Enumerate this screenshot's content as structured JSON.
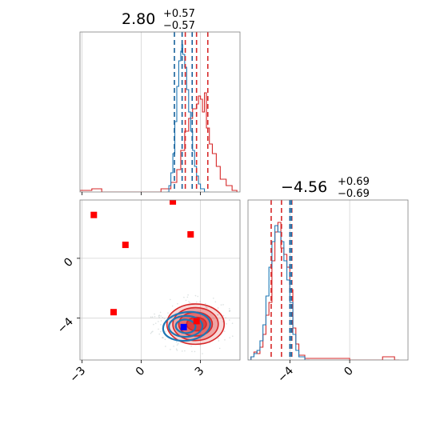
{
  "chart_data": {
    "type": "corner",
    "colors": {
      "red": "#d62728",
      "blue": "#1f77b4",
      "grid": "#d3d3d3",
      "axis": "#808080"
    },
    "titles": [
      {
        "main": "2.80",
        "upper": "+0.57",
        "lower": "−0.57"
      },
      {
        "main": "−4.56",
        "upper": "+0.69",
        "lower": "−0.69"
      }
    ],
    "param1_axis": {
      "range": [
        -3.1,
        5.0
      ],
      "ticks": [
        -3,
        0,
        3
      ],
      "tick_labels": [
        "−3",
        "0",
        "3"
      ]
    },
    "param2_axis": {
      "range": [
        -6.8,
        3.9
      ],
      "ticks": [
        -4,
        0
      ],
      "tick_labels": [
        "−4",
        "0"
      ]
    },
    "hist1": {
      "red_quantiles": [
        2.23,
        2.8,
        3.37
      ],
      "blue_quantiles": [
        1.68,
        2.07,
        2.58
      ],
      "red_bins": [
        [
          -3.1,
          0.01
        ],
        [
          -2.5,
          0.02
        ],
        [
          -2.0,
          0.0
        ],
        [
          0.5,
          0.0
        ],
        [
          1.0,
          0.02
        ],
        [
          1.5,
          0.06
        ],
        [
          1.8,
          0.14
        ],
        [
          2.0,
          0.26
        ],
        [
          2.2,
          0.38
        ],
        [
          2.4,
          0.46
        ],
        [
          2.6,
          0.52
        ],
        [
          2.8,
          0.55
        ],
        [
          2.9,
          0.6
        ],
        [
          3.0,
          0.58
        ],
        [
          3.1,
          0.5
        ],
        [
          3.2,
          0.62
        ],
        [
          3.3,
          0.4
        ],
        [
          3.45,
          0.3
        ],
        [
          3.6,
          0.24
        ],
        [
          3.8,
          0.16
        ],
        [
          4.0,
          0.08
        ],
        [
          4.3,
          0.04
        ],
        [
          4.6,
          0.01
        ]
      ],
      "blue_bins": [
        [
          1.3,
          0.0
        ],
        [
          1.4,
          0.04
        ],
        [
          1.5,
          0.12
        ],
        [
          1.6,
          0.24
        ],
        [
          1.7,
          0.44
        ],
        [
          1.8,
          0.66
        ],
        [
          1.9,
          0.82
        ],
        [
          2.0,
          0.88
        ],
        [
          2.05,
          0.92
        ],
        [
          2.1,
          0.86
        ],
        [
          2.2,
          0.78
        ],
        [
          2.3,
          0.64
        ],
        [
          2.4,
          0.5
        ],
        [
          2.5,
          0.38
        ],
        [
          2.6,
          0.26
        ],
        [
          2.7,
          0.16
        ],
        [
          2.8,
          0.1
        ],
        [
          2.9,
          0.05
        ],
        [
          3.0,
          0.02
        ],
        [
          3.2,
          0.0
        ]
      ]
    },
    "hist2": {
      "red_quantiles": [
        -5.25,
        -4.56,
        -3.87
      ],
      "blue_quantiles": [
        -4.0,
        -3.9
      ],
      "red_bins": [
        [
          -6.8,
          0.0
        ],
        [
          -6.6,
          0.02
        ],
        [
          -6.4,
          0.05
        ],
        [
          -6.2,
          0.04
        ],
        [
          -6.0,
          0.08
        ],
        [
          -5.8,
          0.16
        ],
        [
          -5.6,
          0.28
        ],
        [
          -5.4,
          0.36
        ],
        [
          -5.2,
          0.62
        ],
        [
          -5.0,
          0.8
        ],
        [
          -4.8,
          0.86
        ],
        [
          -4.6,
          0.7
        ],
        [
          -4.4,
          0.66
        ],
        [
          -4.2,
          0.58
        ],
        [
          -4.0,
          0.44
        ],
        [
          -3.8,
          0.2
        ],
        [
          -3.6,
          0.1
        ],
        [
          -3.4,
          0.03
        ],
        [
          -3.0,
          0.01
        ],
        [
          0.0,
          0.0
        ],
        [
          2.2,
          0.02
        ],
        [
          3.0,
          0.0
        ]
      ],
      "blue_bins": [
        [
          -6.8,
          0.0
        ],
        [
          -6.6,
          0.02
        ],
        [
          -6.4,
          0.04
        ],
        [
          -6.2,
          0.06
        ],
        [
          -6.0,
          0.12
        ],
        [
          -5.8,
          0.22
        ],
        [
          -5.6,
          0.4
        ],
        [
          -5.4,
          0.58
        ],
        [
          -5.2,
          0.74
        ],
        [
          -5.0,
          0.84
        ],
        [
          -4.8,
          0.8
        ],
        [
          -4.6,
          0.74
        ],
        [
          -4.4,
          0.62
        ],
        [
          -4.2,
          0.5
        ],
        [
          -4.0,
          0.36
        ],
        [
          -3.8,
          0.16
        ],
        [
          -3.6,
          0.06
        ],
        [
          -3.4,
          0.02
        ],
        [
          -3.0,
          0.0
        ]
      ]
    },
    "scatter_red_squares": [
      [
        -2.4,
        2.9
      ],
      [
        1.6,
        3.8
      ],
      [
        -0.8,
        0.9
      ],
      [
        2.5,
        1.6
      ],
      [
        -1.4,
        -3.6
      ],
      [
        2.8,
        -4.2
      ]
    ],
    "scatter_blue_squares": [
      [
        2.15,
        -4.6
      ]
    ],
    "contours_red": [
      {
        "cx": 2.75,
        "cy": -4.4,
        "rx": 1.45,
        "ry": 1.35,
        "fill_opacity": 0.18
      },
      {
        "cx": 2.75,
        "cy": -4.4,
        "rx": 1.15,
        "ry": 1.1,
        "fill_opacity": 0.3
      },
      {
        "cx": 2.75,
        "cy": -4.4,
        "rx": 0.85,
        "ry": 0.8,
        "fill_opacity": 0.45
      },
      {
        "cx": 2.8,
        "cy": -4.4,
        "rx": 0.5,
        "ry": 0.45,
        "fill_opacity": 0.65
      }
    ],
    "contours_blue": [
      {
        "cx": 2.3,
        "cy": -4.55,
        "rx": 1.2,
        "ry": 0.95
      },
      {
        "cx": 2.25,
        "cy": -4.55,
        "rx": 0.85,
        "ry": 0.7
      },
      {
        "cx": 2.25,
        "cy": -4.55,
        "rx": 0.5,
        "ry": 0.45
      }
    ]
  }
}
